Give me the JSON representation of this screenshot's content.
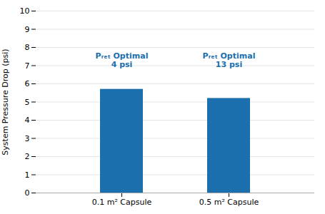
{
  "chart_data": {
    "type": "bar",
    "categories": [
      "0.1 m² Capsule",
      "0.5 m² Capsule"
    ],
    "values": [
      5.7,
      5.2
    ],
    "color": "#1c6fad",
    "ylabel": "System Pressure Drop (psi)",
    "ylim": [
      0,
      10
    ],
    "yticks": [
      0,
      1,
      2,
      3,
      4,
      5,
      6,
      7,
      8,
      9,
      10
    ],
    "grid": true,
    "annotations": [
      {
        "text": "Pᵣₑₜ Optimal",
        "x": "0.1 m² Capsule",
        "y": 7.55,
        "color": "#1c6fad"
      },
      {
        "text": "4 psi",
        "x": "0.1 m² Capsule",
        "y": 7.05,
        "color": "#1c6fad"
      },
      {
        "text": "Pᵣₑₜ Optimal",
        "x": "0.5 m² Capsule",
        "y": 7.55,
        "color": "#1c6fad"
      },
      {
        "text": "13 psi",
        "x": "0.5 m² Capsule",
        "y": 7.05,
        "color": "#1c6fad"
      }
    ]
  }
}
